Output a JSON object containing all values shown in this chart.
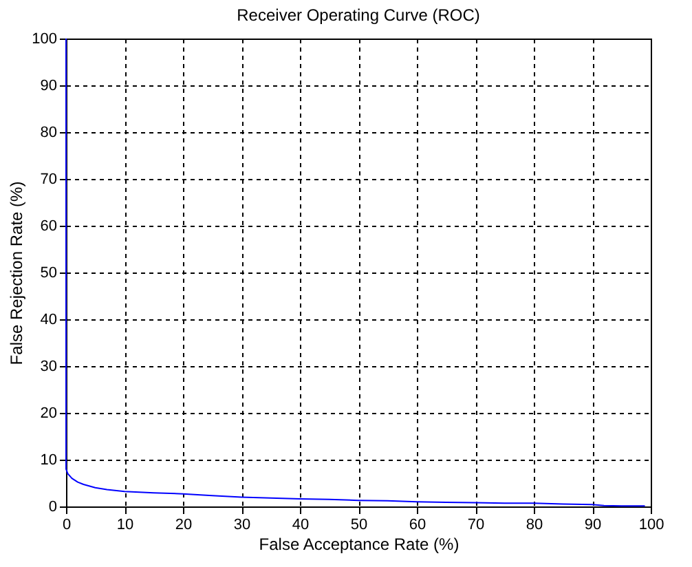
{
  "chart_data": {
    "type": "line",
    "title": "Receiver Operating Curve (ROC)",
    "xlabel": "False Acceptance Rate (%)",
    "ylabel": "False Rejection Rate (%)",
    "series": [
      {
        "color": "#0000ff",
        "x": [
          0,
          0,
          0.3,
          1,
          2,
          3,
          5,
          7,
          10,
          15,
          20,
          25,
          30,
          35,
          40,
          45,
          50,
          55,
          60,
          65,
          70,
          75,
          80,
          85,
          90,
          92,
          95,
          99
        ],
        "values": [
          100,
          8,
          7,
          6,
          5.2,
          4.7,
          4,
          3.6,
          3.2,
          2.9,
          2.7,
          2.3,
          2,
          1.8,
          1.6,
          1.5,
          1.3,
          1.2,
          1,
          0.9,
          0.8,
          0.7,
          0.7,
          0.5,
          0.4,
          0.2,
          0.1,
          0.1
        ]
      }
    ],
    "xlim": [
      0,
      100
    ],
    "ylim": [
      0,
      100
    ],
    "xticks": [
      0,
      10,
      20,
      30,
      40,
      50,
      60,
      70,
      80,
      90,
      100
    ],
    "yticks": [
      0,
      10,
      20,
      30,
      40,
      50,
      60,
      70,
      80,
      90,
      100
    ],
    "grid": true,
    "line_style": "solid",
    "marker": "none"
  }
}
